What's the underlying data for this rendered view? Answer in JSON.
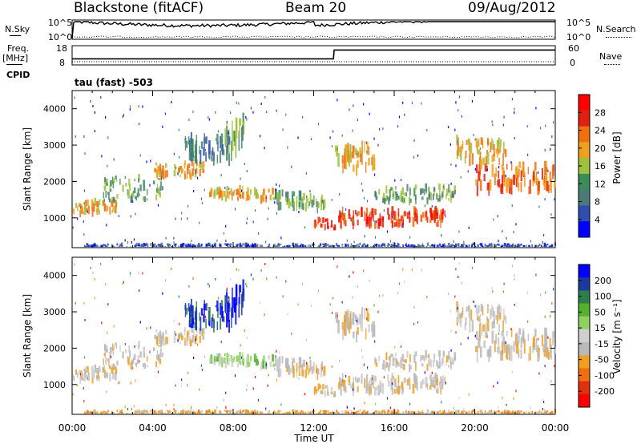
{
  "header": {
    "station": "Blackstone (fitACF)",
    "beam": "Beam 20",
    "date": "09/Aug/2012"
  },
  "panel_labels": {
    "nsky": "N.Sky",
    "nsearch": "N.Search",
    "freq": "Freq.",
    "mhz": "[MHz]",
    "nave": "Nave",
    "cpid": "CPID",
    "cpid_value": "tau (fast) -503"
  },
  "top_ticks": {
    "noise_left": [
      "10^5",
      "10^0"
    ],
    "noise_right": [
      "10^5",
      "10^0"
    ],
    "freq_left": [
      "18",
      "8"
    ],
    "nave_right": [
      "60",
      "0"
    ]
  },
  "colors": {
    "power_scale": [
      "#0000ff",
      "#2f4fb0",
      "#4a7a7a",
      "#3c8c5a",
      "#a0c040",
      "#f0a020",
      "#f07010",
      "#e02010",
      "#ff0000"
    ],
    "velocity_scale": [
      "#0000ff",
      "#1a3aa0",
      "#2e7d4a",
      "#55b030",
      "#8fd060",
      "#cfcfcf",
      "#b9b9b9",
      "#f0a020",
      "#f07010",
      "#e03010",
      "#ff0000"
    ]
  },
  "chart_data": [
    {
      "type": "line",
      "name": "noise",
      "ylabel_left": "N.Sky",
      "ylabel_right": "N.Search",
      "x_start": "00:00",
      "x_end": "00:00"
    },
    {
      "type": "line",
      "name": "frequency",
      "ylabel_left": "Freq. [MHz]",
      "ylabel_right": "Nave",
      "x": [
        "00:00",
        "12:59",
        "13:01",
        "24:00"
      ],
      "freq_mhz": [
        11,
        11,
        16,
        16
      ],
      "ylim": [
        8,
        18
      ]
    },
    {
      "type": "heatmap",
      "name": "power",
      "title": "",
      "xlabel": "",
      "ylabel": "Slant Range [km]",
      "ylim": [
        180,
        4500
      ],
      "xticks": [
        "00:00",
        "04:00",
        "08:00",
        "12:00",
        "16:00",
        "20:00",
        "00:00"
      ],
      "yticks": [
        1000,
        2000,
        3000,
        4000
      ],
      "colorbar_label": "Power [dB]",
      "colorbar_ticks": [
        4,
        8,
        12,
        16,
        20,
        24,
        28
      ]
    },
    {
      "type": "heatmap",
      "name": "velocity",
      "title": "",
      "xlabel": "Time UT",
      "ylabel": "Slant Range [km]",
      "ylim": [
        180,
        4500
      ],
      "xticks": [
        "00:00",
        "04:00",
        "08:00",
        "12:00",
        "16:00",
        "20:00",
        "00:00"
      ],
      "yticks": [
        1000,
        2000,
        3000,
        4000
      ],
      "colorbar_label": "Velocity [m s⁻¹]",
      "colorbar_ticks": [
        200,
        100,
        50,
        15,
        -15,
        -50,
        -100,
        -200
      ]
    }
  ]
}
